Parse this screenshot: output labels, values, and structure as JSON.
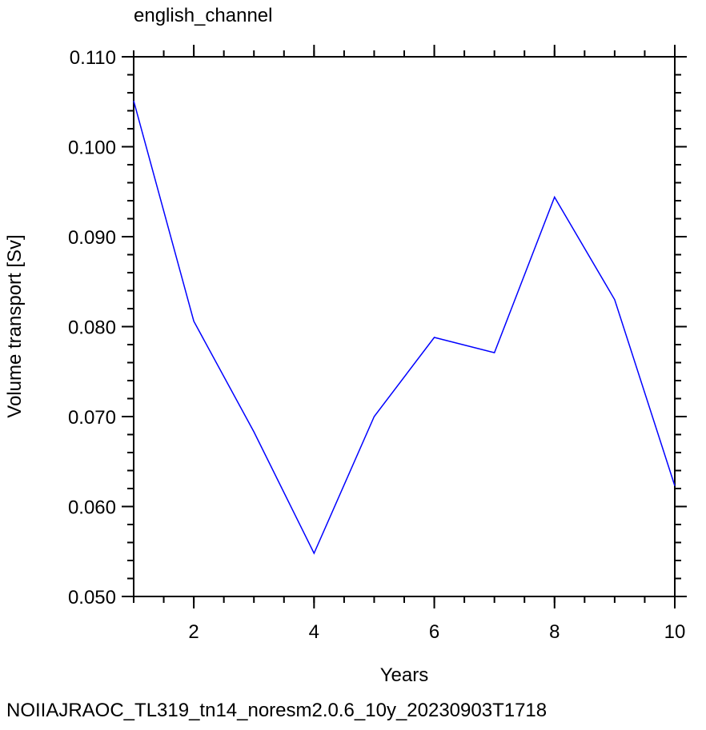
{
  "chart_data": {
    "type": "line",
    "title": "english_channel",
    "x_label": "Years",
    "y_label": "Volume transport [Sv]",
    "footer": "NOIIAJRAOC_TL319_tn14_noresm2.0.6_10y_20230903T1718",
    "x": [
      1,
      2,
      3,
      4,
      5,
      6,
      7,
      8,
      9,
      10
    ],
    "series": [
      {
        "color": "#0000ff",
        "values": [
          0.1051,
          0.0806,
          0.0683,
          0.0548,
          0.07,
          0.0788,
          0.0771,
          0.0944,
          0.083,
          0.0623
        ]
      }
    ],
    "xlim": [
      1,
      10
    ],
    "xticks": [
      2,
      4,
      6,
      8,
      10
    ],
    "ylim": [
      0.05,
      0.11
    ],
    "yticks": [
      {
        "value": 0.05,
        "label": "0.050"
      },
      {
        "value": 0.06,
        "label": "0.060"
      },
      {
        "value": 0.07,
        "label": "0.070"
      },
      {
        "value": 0.08,
        "label": "0.080"
      },
      {
        "value": 0.09,
        "label": "0.090"
      },
      {
        "value": 0.1,
        "label": "0.100"
      },
      {
        "value": 0.11,
        "label": "0.110"
      }
    ],
    "footer_color": "#0000ff"
  }
}
